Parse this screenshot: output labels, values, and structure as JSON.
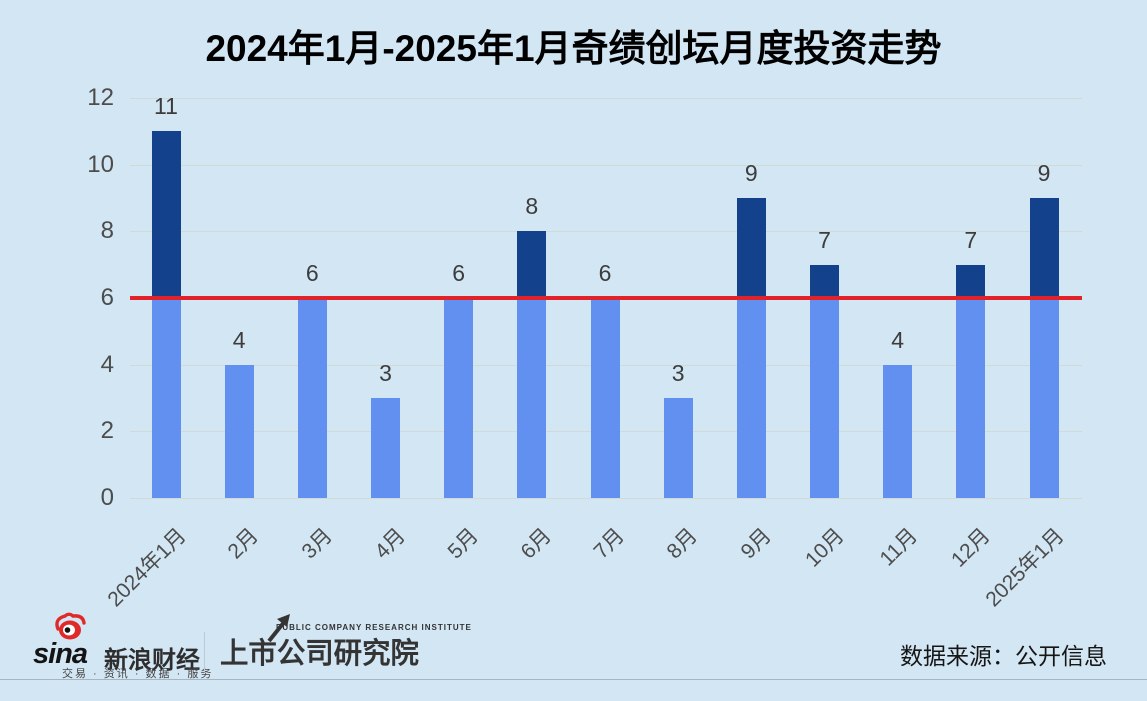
{
  "chart_data": {
    "type": "bar",
    "title": "2024年1月-2025年1月奇绩创坛月度投资走势",
    "categories": [
      "2024年1月",
      "2月",
      "3月",
      "4月",
      "5月",
      "6月",
      "7月",
      "8月",
      "9月",
      "10月",
      "11月",
      "12月",
      "2025年1月"
    ],
    "values": [
      11,
      4,
      6,
      3,
      6,
      8,
      6,
      3,
      9,
      7,
      4,
      7,
      9
    ],
    "xlabel": "",
    "ylabel": "",
    "ylim": [
      0,
      12
    ],
    "yticks": [
      0,
      2,
      4,
      6,
      8,
      10,
      12
    ],
    "reference_line": 6,
    "grid": true,
    "legend": "none",
    "data_labels": true,
    "colors": {
      "bar_below_threshold": "#6190f1",
      "bar_above_threshold": "#14418c",
      "reference_line": "#e12229",
      "background": "#d3e6f4",
      "gridline": "#d2dad8",
      "tick_label": "#4c4c4c",
      "data_label": "#3c3c3c"
    }
  },
  "footer": {
    "sina_logo": {
      "brand": "sina",
      "name": "新浪财经",
      "tagline": "交易 · 资讯 · 数据 · 服务"
    },
    "pcri_logo": {
      "subtitle": "PUBLIC COMPANY RESEARCH INSTITUTE",
      "name": "上市公司研究院"
    },
    "source_label": "数据来源：公开信息"
  }
}
